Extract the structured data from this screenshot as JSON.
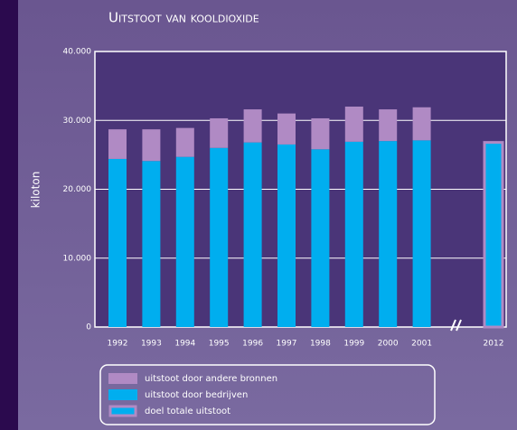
{
  "chart_data": {
    "type": "bar",
    "stacked": true,
    "title": "Uitstoot van kooldioxide",
    "y_label": "kiloton",
    "categories": [
      "1992",
      "1993",
      "1994",
      "1995",
      "1996",
      "1997",
      "1998",
      "1999",
      "2000",
      "2001",
      "2012"
    ],
    "series": [
      {
        "name": "uitstoot door andere bronnen",
        "color": "#b08ac4",
        "values": [
          4300,
          4600,
          4200,
          4300,
          4800,
          4500,
          4500,
          5100,
          4600,
          4800,
          null
        ]
      },
      {
        "name": "uitstoot door bedrijven",
        "color": "#00aeef",
        "values": [
          24400,
          24100,
          24700,
          26000,
          26800,
          26500,
          25800,
          26900,
          27000,
          27100,
          null
        ]
      },
      {
        "name": "doel totale uitstoot",
        "color": "#b08ac4",
        "style": "outline",
        "values": [
          null,
          null,
          null,
          null,
          null,
          null,
          null,
          null,
          null,
          null,
          26800
        ]
      }
    ],
    "ylim": [
      0,
      40000
    ],
    "yticks": [
      0,
      {
        "value": 10000,
        "label": "10.000"
      },
      {
        "value": 20000,
        "label": "20.000"
      },
      {
        "value": 30000,
        "label": "30.000"
      },
      {
        "value": 40000,
        "label": "40.000"
      }
    ],
    "grid": true
  }
}
